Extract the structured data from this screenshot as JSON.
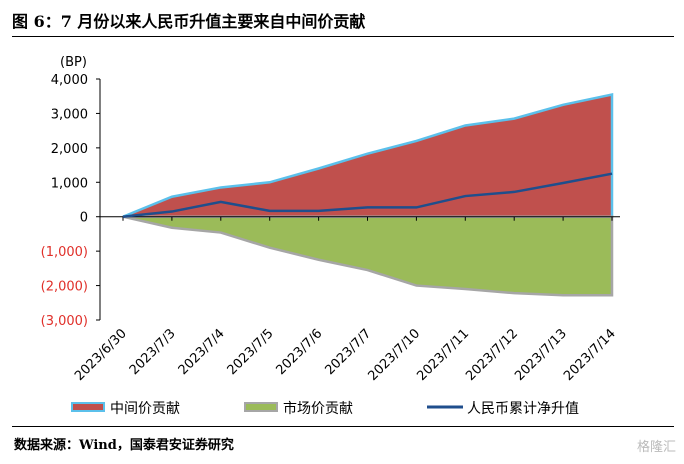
{
  "title": "图 6：7 月份以来人民币升值主要来自中间价贡献",
  "source": "数据来源：Wind，国泰君安证券研究",
  "watermark": "格隆汇",
  "chart_data": {
    "type": "area",
    "ylabel": "(BP)",
    "ylim": [
      -3000,
      4000
    ],
    "yticks": [
      4000,
      3000,
      2000,
      1000,
      0,
      -1000,
      -2000,
      -3000
    ],
    "ytick_labels": [
      "4,000",
      "3,000",
      "2,000",
      "1,000",
      "0",
      "(1,000)",
      "(2,000)",
      "(3,000)"
    ],
    "categories": [
      "2023/6/30",
      "2023/7/3",
      "2023/7/4",
      "2023/7/5",
      "2023/7/6",
      "2023/7/7",
      "2023/7/10",
      "2023/7/11",
      "2023/7/12",
      "2023/7/13",
      "2023/7/14"
    ],
    "series": [
      {
        "name": "中间价贡献",
        "type": "area",
        "color": "#c0504d",
        "edge": "#5bc0eb",
        "values": [
          0,
          580,
          850,
          1000,
          1400,
          1830,
          2200,
          2650,
          2850,
          3250,
          3550
        ]
      },
      {
        "name": "市场价贡献",
        "type": "area",
        "color": "#9bbb59",
        "edge": "#a6a6a6",
        "values": [
          0,
          -320,
          -460,
          -900,
          -1250,
          -1550,
          -2000,
          -2100,
          -2220,
          -2280,
          -2280
        ]
      },
      {
        "name": "人民币累计净升值",
        "type": "line",
        "color": "#1f4e8c",
        "values": [
          0,
          150,
          430,
          170,
          170,
          270,
          270,
          600,
          720,
          980,
          1250
        ]
      }
    ],
    "legend": "bottom"
  }
}
